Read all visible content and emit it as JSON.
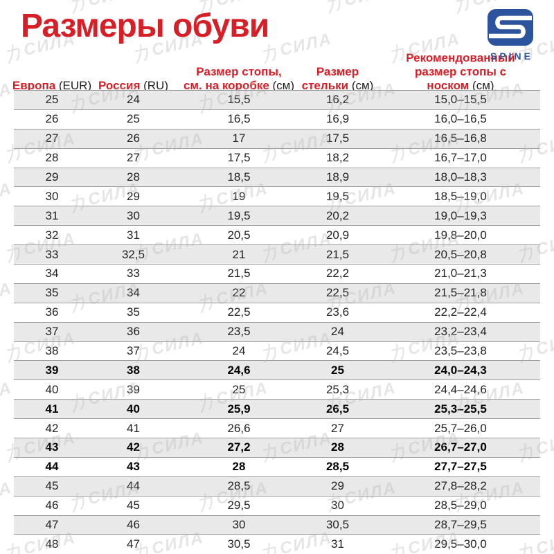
{
  "title": "Размеры обуви",
  "logo": {
    "brand": "SPINE"
  },
  "watermark": {
    "text": "力СИЛА"
  },
  "colors": {
    "accent_red": "#d61f26",
    "brand_blue": "#2b539e",
    "zebra_gray": "#e9e9e9",
    "rule_gray": "#9b9b9b"
  },
  "table": {
    "columns": [
      {
        "lines": [
          "Европа"
        ],
        "unit": "(EUR)"
      },
      {
        "lines": [
          "Россия"
        ],
        "unit": "(RU)"
      },
      {
        "lines": [
          "Размер стопы,",
          "см. на коробке"
        ],
        "unit": "(см)"
      },
      {
        "lines": [
          "Размер",
          "стельки"
        ],
        "unit": "(см)"
      },
      {
        "lines": [
          "Рекомендованный",
          "размер стопы с носком"
        ],
        "unit": "(см)"
      }
    ],
    "rows": [
      {
        "values": [
          "25",
          "24",
          "15,5",
          "16,2",
          "15,0–15,5"
        ],
        "bold": false
      },
      {
        "values": [
          "26",
          "25",
          "16,5",
          "16,9",
          "16,0–16,5"
        ],
        "bold": false
      },
      {
        "values": [
          "27",
          "26",
          "17",
          "17,5",
          "16,5–16,8"
        ],
        "bold": false
      },
      {
        "values": [
          "28",
          "27",
          "17,5",
          "18,2",
          "16,7–17,0"
        ],
        "bold": false
      },
      {
        "values": [
          "29",
          "28",
          "18,5",
          "18,9",
          "18,0–18,3"
        ],
        "bold": false
      },
      {
        "values": [
          "30",
          "29",
          "19",
          "19,5",
          "18,5–19,0"
        ],
        "bold": false
      },
      {
        "values": [
          "31",
          "30",
          "19,5",
          "20,2",
          "19,0–19,3"
        ],
        "bold": false
      },
      {
        "values": [
          "32",
          "31",
          "20,5",
          "20,9",
          "19,8–20,0"
        ],
        "bold": false
      },
      {
        "values": [
          "33",
          "32,5",
          "21",
          "21,5",
          "20,5–20,8"
        ],
        "bold": false
      },
      {
        "values": [
          "34",
          "33",
          "21,5",
          "22,2",
          "21,0–21,3"
        ],
        "bold": false
      },
      {
        "values": [
          "35",
          "34",
          "22",
          "22,5",
          "21,5–21,8"
        ],
        "bold": false
      },
      {
        "values": [
          "36",
          "35",
          "22,5",
          "23,6",
          "22,2–22,4"
        ],
        "bold": false
      },
      {
        "values": [
          "37",
          "36",
          "23,5",
          "24",
          "23,2–23,4"
        ],
        "bold": false
      },
      {
        "values": [
          "38",
          "37",
          "24",
          "24,5",
          "23,5–23,8"
        ],
        "bold": false
      },
      {
        "values": [
          "39",
          "38",
          "24,6",
          "25",
          "24,0–24,3"
        ],
        "bold": true
      },
      {
        "values": [
          "40",
          "39",
          "25",
          "25,3",
          "24,4–24,6"
        ],
        "bold": false
      },
      {
        "values": [
          "41",
          "40",
          "25,9",
          "26,5",
          "25,3–25,5"
        ],
        "bold": true
      },
      {
        "values": [
          "42",
          "41",
          "26,6",
          "27",
          "25,7–26,0"
        ],
        "bold": false
      },
      {
        "values": [
          "43",
          "42",
          "27,2",
          "28",
          "26,7–27,0"
        ],
        "bold": true
      },
      {
        "values": [
          "44",
          "43",
          "28",
          "28,5",
          "27,7–27,5"
        ],
        "bold": true
      },
      {
        "values": [
          "45",
          "44",
          "28,5",
          "29",
          "27,8–28,2"
        ],
        "bold": false
      },
      {
        "values": [
          "46",
          "45",
          "29,5",
          "30",
          "28,5–29,0"
        ],
        "bold": false
      },
      {
        "values": [
          "47",
          "46",
          "30",
          "30,5",
          "28,7–29,5"
        ],
        "bold": false
      },
      {
        "values": [
          "48",
          "47",
          "30,5",
          "31",
          "29,5–30,0"
        ],
        "bold": false
      }
    ]
  }
}
